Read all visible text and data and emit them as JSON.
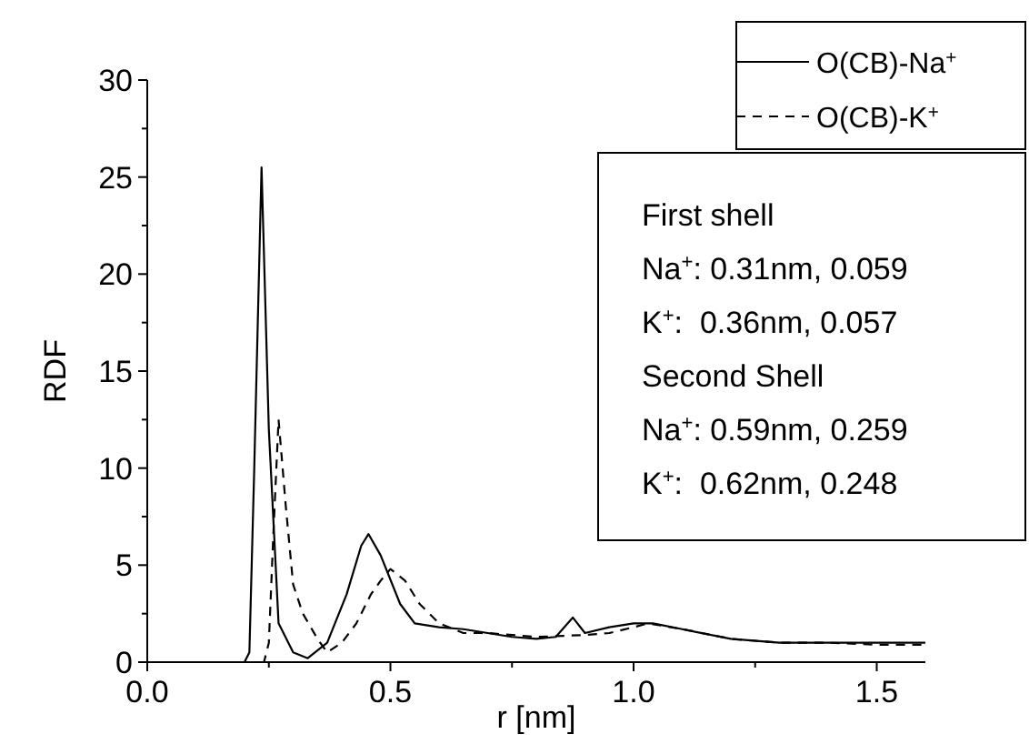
{
  "chart_data": {
    "type": "line",
    "xlabel": "r [nm]",
    "ylabel": "RDF",
    "xlim": [
      0,
      1.6
    ],
    "ylim": [
      0,
      30
    ],
    "xticks": [
      {
        "value": 0,
        "label": "0.0"
      },
      {
        "value": 0.25,
        "label": null
      },
      {
        "value": 0.5,
        "label": "0.5"
      },
      {
        "value": 0.75,
        "label": null
      },
      {
        "value": 1,
        "label": "1.0"
      },
      {
        "value": 1.25,
        "label": null
      },
      {
        "value": 1.5,
        "label": "1.5"
      }
    ],
    "yticks": [
      0,
      {
        "value": 2.5,
        "label": null
      },
      5,
      {
        "value": 7.5,
        "label": null
      },
      10,
      {
        "value": 12.5,
        "label": null
      },
      15,
      {
        "value": 17.5,
        "label": null
      },
      20,
      {
        "value": 22.5,
        "label": null
      },
      25,
      {
        "value": 27.5,
        "label": null
      },
      30
    ],
    "grid": false,
    "legend": "top right",
    "marker": "none",
    "series": [
      {
        "name": "O(CB)-Na$^{+}$",
        "color": "#000000",
        "line_style": "solid",
        "x": [
          0,
          0.2,
          0.21,
          0.22,
          0.235,
          0.25,
          0.27,
          0.3,
          0.33,
          0.37,
          0.41,
          0.44,
          0.455,
          0.48,
          0.52,
          0.55,
          0.6,
          0.65,
          0.7,
          0.75,
          0.8,
          0.84,
          0.875,
          0.9,
          0.95,
          1.0,
          1.04,
          1.1,
          1.2,
          1.3,
          1.4,
          1.5,
          1.6
        ],
        "values": [
          0,
          0,
          0.5,
          10,
          25.5,
          12,
          2,
          0.5,
          0.2,
          1,
          3.5,
          6,
          6.6,
          5.5,
          3,
          2,
          1.8,
          1.7,
          1.5,
          1.3,
          1.2,
          1.3,
          2.3,
          1.5,
          1.8,
          2.0,
          2.0,
          1.7,
          1.2,
          1.0,
          1.0,
          1.0,
          1.0
        ]
      },
      {
        "name": "O(CB)-K$^{+}$",
        "color": "#000000",
        "line_style": "dashed",
        "x": [
          0,
          0.24,
          0.25,
          0.26,
          0.27,
          0.285,
          0.3,
          0.32,
          0.35,
          0.37,
          0.4,
          0.43,
          0.46,
          0.48,
          0.5,
          0.53,
          0.56,
          0.6,
          0.65,
          0.7,
          0.8,
          0.9,
          0.95,
          1.0,
          1.03,
          1.1,
          1.2,
          1.3,
          1.4,
          1.5,
          1.6
        ],
        "values": [
          0,
          0,
          1,
          7,
          12.5,
          8,
          4,
          2.5,
          1.2,
          0.5,
          1,
          2,
          3.5,
          4.2,
          4.8,
          4.2,
          3,
          2,
          1.5,
          1.5,
          1.3,
          1.4,
          1.5,
          1.8,
          2.0,
          1.7,
          1.2,
          1.0,
          1.0,
          0.9,
          0.9
        ]
      }
    ],
    "annotations": [
      "First shell",
      "Na$^{+}$: 0.31nm, 0.059",
      "K$^{+}$:  0.36nm, 0.057",
      "Second Shell",
      "Na$^{+}$: 0.59nm, 0.259",
      "K$^{+}$:  0.62nm, 0.248"
    ]
  }
}
